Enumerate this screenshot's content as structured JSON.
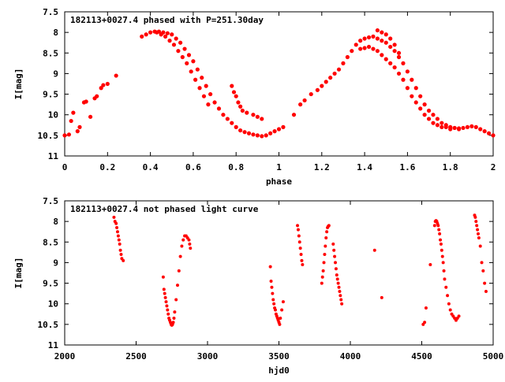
{
  "chart_data": [
    {
      "type": "scatter",
      "title": "182113+0027.4 phased with P=251.30day",
      "xlabel": "phase",
      "ylabel": "I[mag]",
      "xlim": [
        0,
        2
      ],
      "ylim": [
        7.5,
        11
      ],
      "y_inverted": true,
      "x_ticks": [
        "0",
        "0.2",
        "0.4",
        "0.6",
        "0.8",
        "1",
        "1.2",
        "1.4",
        "1.6",
        "1.8",
        "2"
      ],
      "y_ticks": [
        "7.5",
        "8",
        "8.5",
        "9",
        "9.5",
        "10",
        "10.5",
        "11"
      ],
      "grid": false,
      "marker_color": "#ff0000",
      "series": [
        {
          "x": [
            0.0,
            0.02,
            0.03,
            0.04,
            0.06,
            0.07,
            0.09,
            0.1,
            0.12,
            0.14,
            0.15,
            0.17,
            0.18,
            0.2,
            0.24,
            0.36,
            0.38,
            0.4,
            0.42,
            0.44,
            0.46,
            0.48,
            0.5,
            0.52,
            0.54,
            0.56,
            0.58,
            0.6,
            0.62,
            0.64,
            0.66,
            0.68,
            0.7,
            0.72,
            0.74,
            0.76,
            0.78,
            0.8,
            0.82,
            0.84,
            0.86,
            0.88,
            0.9,
            0.92,
            0.94,
            0.96,
            0.98,
            1.0,
            1.02,
            0.43,
            0.45,
            0.47,
            0.49,
            0.51,
            0.53,
            0.55,
            0.57,
            0.59,
            0.61,
            0.63,
            0.65,
            0.67,
            0.78,
            0.79,
            0.8,
            0.81,
            0.82,
            0.83,
            0.85,
            0.88,
            0.9,
            0.92,
            1.07,
            1.1,
            1.12,
            1.15,
            1.18,
            1.2,
            1.22,
            1.24,
            1.26,
            1.28,
            1.3,
            1.32,
            1.34,
            1.36,
            1.38,
            1.4,
            1.42,
            1.44,
            1.46,
            1.48,
            1.5,
            1.52,
            1.54,
            1.56,
            1.58,
            1.6,
            1.62,
            1.64,
            1.66,
            1.68,
            1.7,
            1.72,
            1.74,
            1.76,
            1.78,
            1.8,
            1.82,
            1.84,
            1.86,
            1.88,
            1.9,
            1.92,
            1.94,
            1.96,
            1.98,
            2.0,
            1.38,
            1.4,
            1.42,
            1.44,
            1.46,
            1.48,
            1.5,
            1.52,
            1.54,
            1.56,
            1.58,
            1.6,
            1.62,
            1.64,
            1.66,
            1.68,
            1.7,
            1.72,
            1.74,
            1.76,
            1.78,
            1.8,
            1.82,
            1.84,
            1.46,
            1.48,
            1.5,
            1.52,
            1.54,
            1.56
          ],
          "y": [
            10.5,
            10.48,
            10.15,
            9.95,
            10.4,
            10.3,
            9.7,
            9.68,
            10.05,
            9.6,
            9.55,
            9.35,
            9.28,
            9.25,
            9.05,
            8.1,
            8.05,
            8.0,
            7.98,
            7.98,
            8.0,
            8.02,
            8.05,
            8.15,
            8.25,
            8.4,
            8.55,
            8.7,
            8.9,
            9.1,
            9.3,
            9.5,
            9.7,
            9.85,
            10.0,
            10.1,
            10.2,
            10.3,
            10.38,
            10.42,
            10.45,
            10.48,
            10.5,
            10.52,
            10.5,
            10.45,
            10.4,
            10.35,
            10.3,
            8.0,
            8.05,
            8.1,
            8.2,
            8.3,
            8.45,
            8.6,
            8.75,
            8.95,
            9.15,
            9.35,
            9.55,
            9.75,
            9.3,
            9.45,
            9.55,
            9.7,
            9.8,
            9.9,
            9.95,
            10.0,
            10.05,
            10.1,
            10.0,
            9.75,
            9.65,
            9.5,
            9.4,
            9.3,
            9.2,
            9.1,
            9.0,
            8.9,
            8.75,
            8.6,
            8.45,
            8.3,
            8.2,
            8.15,
            8.12,
            8.1,
            8.15,
            8.2,
            8.25,
            8.35,
            8.45,
            8.6,
            8.75,
            8.95,
            9.15,
            9.35,
            9.55,
            9.75,
            9.9,
            10.0,
            10.1,
            10.2,
            10.25,
            10.3,
            10.32,
            10.33,
            10.32,
            10.3,
            10.28,
            10.3,
            10.35,
            10.4,
            10.45,
            10.5,
            8.4,
            8.38,
            8.35,
            8.4,
            8.45,
            8.55,
            8.65,
            8.75,
            8.85,
            9.0,
            9.15,
            9.35,
            9.55,
            9.7,
            9.85,
            10.0,
            10.1,
            10.2,
            10.25,
            10.3,
            10.3,
            10.35,
            10.32,
            10.35,
            7.95,
            8.0,
            8.05,
            8.15,
            8.3,
            8.5
          ]
        }
      ]
    },
    {
      "type": "scatter",
      "title": "182113+0027.4 not phased light curve",
      "xlabel": "hjd0",
      "ylabel": "I[mag]",
      "xlim": [
        2000,
        5000
      ],
      "ylim": [
        7.5,
        11
      ],
      "y_inverted": true,
      "x_ticks": [
        "2000",
        "2500",
        "3000",
        "3500",
        "4000",
        "4500",
        "5000"
      ],
      "y_ticks": [
        "7.5",
        "8",
        "8.5",
        "9",
        "9.5",
        "10",
        "10.5",
        "11"
      ],
      "grid": false,
      "marker_color": "#ff0000",
      "series": [
        {
          "x": [
            2345,
            2352,
            2360,
            2365,
            2370,
            2375,
            2380,
            2385,
            2390,
            2395,
            2400,
            2410,
            2690,
            2695,
            2700,
            2705,
            2710,
            2715,
            2720,
            2725,
            2730,
            2735,
            2740,
            2745,
            2750,
            2755,
            2760,
            2765,
            2770,
            2780,
            2790,
            2800,
            2810,
            2820,
            2830,
            2840,
            2850,
            2860,
            2870,
            2875,
            2880,
            3440,
            3445,
            3450,
            3455,
            3460,
            3465,
            3470,
            3475,
            3480,
            3485,
            3490,
            3495,
            3500,
            3505,
            3510,
            3520,
            3530,
            3630,
            3635,
            3640,
            3645,
            3650,
            3655,
            3660,
            3665,
            3800,
            3805,
            3810,
            3815,
            3820,
            3825,
            3830,
            3835,
            3840,
            3845,
            3850,
            3880,
            3885,
            3890,
            3895,
            3900,
            3905,
            3910,
            3915,
            3920,
            3925,
            3930,
            3935,
            3940,
            4170,
            4220,
            4510,
            4520,
            4530,
            4560,
            4590,
            4595,
            4600,
            4605,
            4610,
            4615,
            4620,
            4625,
            4630,
            4635,
            4640,
            4645,
            4650,
            4655,
            4660,
            4670,
            4680,
            4690,
            4700,
            4710,
            4720,
            4730,
            4740,
            4750,
            4760,
            4870,
            4875,
            4880,
            4885,
            4890,
            4895,
            4900,
            4910,
            4920,
            4930,
            4940,
            4950
          ],
          "y": [
            7.9,
            8.0,
            8.05,
            8.15,
            8.25,
            8.35,
            8.45,
            8.55,
            8.7,
            8.8,
            8.9,
            8.95,
            9.35,
            9.65,
            9.75,
            9.85,
            9.95,
            10.05,
            10.15,
            10.25,
            10.35,
            10.4,
            10.45,
            10.5,
            10.52,
            10.5,
            10.45,
            10.35,
            10.2,
            9.9,
            9.55,
            9.2,
            8.85,
            8.6,
            8.45,
            8.35,
            8.35,
            8.4,
            8.45,
            8.55,
            8.65,
            9.1,
            9.45,
            9.6,
            9.75,
            9.9,
            10.0,
            10.1,
            10.15,
            10.25,
            10.3,
            10.35,
            10.4,
            10.45,
            10.5,
            10.35,
            10.15,
            9.95,
            8.1,
            8.2,
            8.35,
            8.5,
            8.65,
            8.8,
            8.95,
            9.05,
            9.5,
            9.35,
            9.2,
            9.0,
            8.8,
            8.6,
            8.4,
            8.25,
            8.15,
            8.12,
            8.1,
            8.55,
            8.7,
            8.85,
            9.0,
            9.15,
            9.3,
            9.4,
            9.5,
            9.6,
            9.7,
            9.8,
            9.9,
            10.0,
            8.7,
            9.85,
            10.5,
            10.45,
            10.1,
            9.05,
            8.1,
            8.0,
            7.98,
            8.0,
            8.05,
            8.1,
            8.2,
            8.3,
            8.45,
            8.55,
            8.7,
            8.85,
            9.0,
            9.2,
            9.4,
            9.6,
            9.8,
            10.0,
            10.15,
            10.25,
            10.3,
            10.35,
            10.4,
            10.35,
            10.3,
            7.85,
            7.9,
            8.0,
            8.1,
            8.2,
            8.3,
            8.4,
            8.6,
            9.0,
            9.2,
            9.5,
            9.7
          ]
        }
      ]
    }
  ]
}
